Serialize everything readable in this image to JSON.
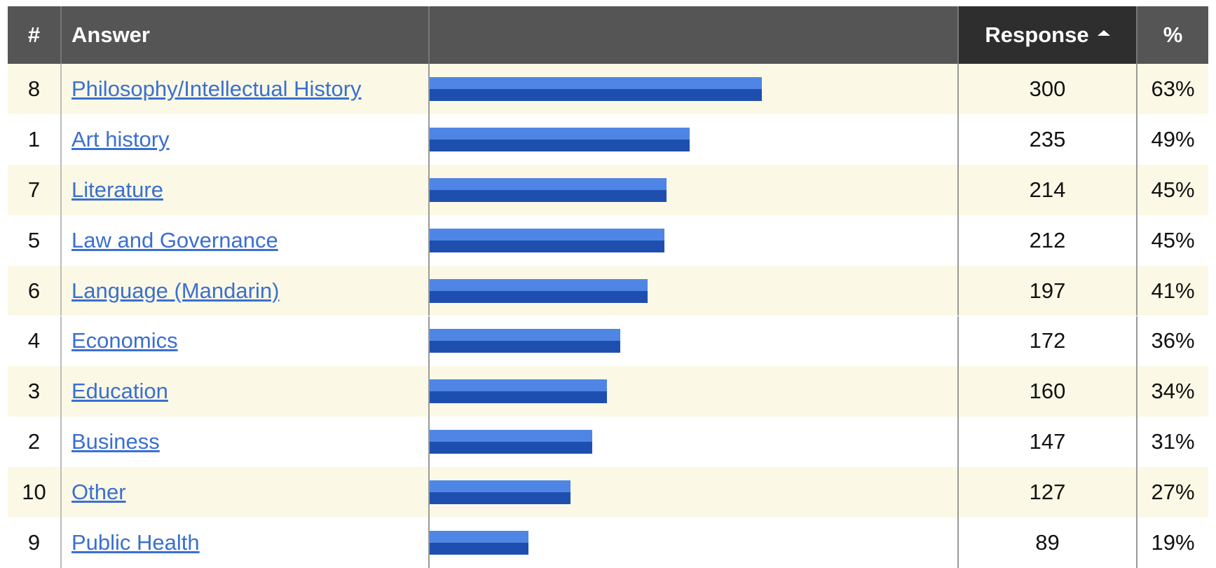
{
  "header": {
    "number": "#",
    "answer": "Answer",
    "response": "Response",
    "percent": "%"
  },
  "rows": [
    {
      "id": 8,
      "answer": "Philosophy/Intellectual History",
      "response": 300,
      "percent": "63%"
    },
    {
      "id": 1,
      "answer": "Art history",
      "response": 235,
      "percent": "49%"
    },
    {
      "id": 7,
      "answer": "Literature",
      "response": 214,
      "percent": "45%"
    },
    {
      "id": 5,
      "answer": "Law and Governance",
      "response": 212,
      "percent": "45%"
    },
    {
      "id": 6,
      "answer": "Language (Mandarin)",
      "response": 197,
      "percent": "41%"
    },
    {
      "id": 4,
      "answer": "Economics",
      "response": 172,
      "percent": "36%"
    },
    {
      "id": 3,
      "answer": "Education",
      "response": 160,
      "percent": "34%"
    },
    {
      "id": 2,
      "answer": "Business",
      "response": 147,
      "percent": "31%"
    },
    {
      "id": 10,
      "answer": "Other",
      "response": 127,
      "percent": "27%"
    },
    {
      "id": 9,
      "answer": "Public Health",
      "response": 89,
      "percent": "19%"
    }
  ]
}
